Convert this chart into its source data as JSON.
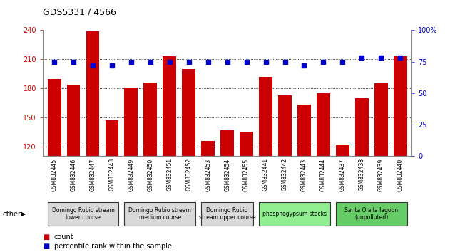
{
  "title": "GDS5331 / 4566",
  "samples": [
    "GSM832445",
    "GSM832446",
    "GSM832447",
    "GSM832448",
    "GSM832449",
    "GSM832450",
    "GSM832451",
    "GSM832452",
    "GSM832453",
    "GSM832454",
    "GSM832455",
    "GSM832441",
    "GSM832442",
    "GSM832443",
    "GSM832444",
    "GSM832437",
    "GSM832438",
    "GSM832439",
    "GSM832440"
  ],
  "counts": [
    190,
    184,
    239,
    147,
    181,
    186,
    213,
    200,
    126,
    137,
    135,
    192,
    173,
    163,
    175,
    122,
    170,
    185,
    213
  ],
  "percentiles": [
    75,
    75,
    72,
    72,
    75,
    75,
    75,
    75,
    75,
    75,
    75,
    75,
    75,
    72,
    75,
    75,
    78,
    78,
    78
  ],
  "ylim_left": [
    110,
    240
  ],
  "ylim_right": [
    0,
    100
  ],
  "yticks_left": [
    120,
    150,
    180,
    210,
    240
  ],
  "yticks_right": [
    0,
    25,
    50,
    75,
    100
  ],
  "bar_color": "#cc0000",
  "dot_color": "#0000cc",
  "groups": [
    {
      "label": "Domingo Rubio stream\nlower course",
      "start": 0,
      "end": 4,
      "color": "#d9d9d9"
    },
    {
      "label": "Domingo Rubio stream\nmedium course",
      "start": 4,
      "end": 8,
      "color": "#d9d9d9"
    },
    {
      "label": "Domingo Rubio\nstream upper course",
      "start": 8,
      "end": 11,
      "color": "#d9d9d9"
    },
    {
      "label": "phosphogypsum stacks",
      "start": 11,
      "end": 15,
      "color": "#90ee90"
    },
    {
      "label": "Santa Olalla lagoon\n(unpolluted)",
      "start": 15,
      "end": 19,
      "color": "#66cc66"
    }
  ],
  "legend_count_label": "count",
  "legend_percentile_label": "percentile rank within the sample",
  "other_label": "other"
}
